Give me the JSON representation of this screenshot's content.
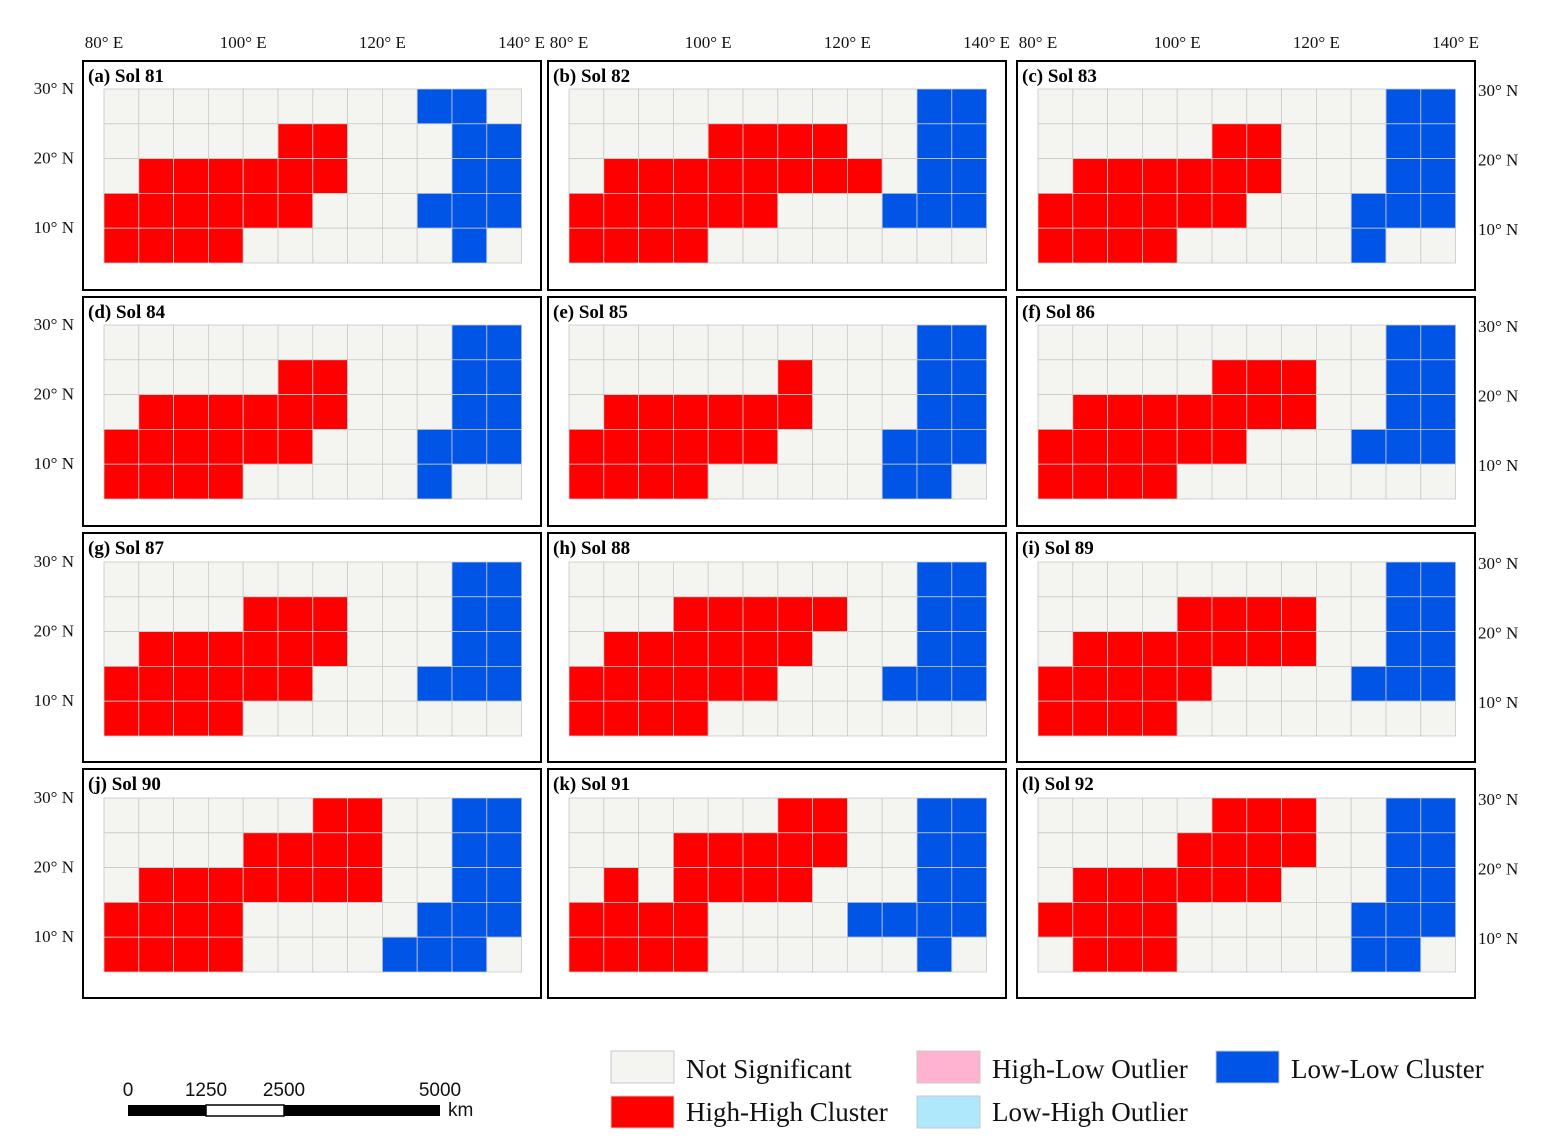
{
  "chart_data": {
    "type": "heatmap",
    "grid": {
      "columns": 12,
      "rows": 5,
      "lon_start": 80,
      "lon_step": 5,
      "lat_top": 30,
      "lat_step": 5,
      "row_order": "north-to-south",
      "legend_codes": {
        "N": "Not Significant",
        "H": "High-High Cluster",
        "L": "Low-Low Cluster",
        "P": "High-Low Outlier",
        "B": "Low-High Outlier"
      }
    },
    "x_ticks": [
      "80° E",
      "100° E",
      "120° E",
      "140° E"
    ],
    "y_ticks": [
      "30° N",
      "20° N",
      "10° N"
    ],
    "panels": [
      {
        "label": "(a) Sol 81",
        "grid": [
          "NNNNNNNNNLLN",
          "NNNNNHHNNNLL",
          "NHHHHHHNNNLL",
          "HHHHHHNNNLLL",
          "HHHHNNNNNNLN"
        ]
      },
      {
        "label": "(b) Sol 82",
        "grid": [
          "NNNNNNNNNNLL",
          "NNNNHHHHNNLL",
          "NHHHHHHHHNLL",
          "HHHHHHNNNLLL",
          "HHHHNNNNNNNN"
        ]
      },
      {
        "label": "(c) Sol 83",
        "grid": [
          "NNNNNNNNNNLL",
          "NNNNNHHNNNLL",
          "NHHHHHHNNNLL",
          "HHHHHHNNNLLL",
          "HHHHNNNNNLNN"
        ]
      },
      {
        "label": "(d) Sol 84",
        "grid": [
          "NNNNNNNNNNLL",
          "NNNNNHHNNNLL",
          "NHHHHHHNNNLL",
          "HHHHHHNNNLLL",
          "HHHHNNNNNLNN"
        ]
      },
      {
        "label": "(e) Sol 85",
        "grid": [
          "NNNNNNNNNNLL",
          "NNNNNNHNNNLL",
          "NHHHHHHNNNLL",
          "HHHHHHNNNLLL",
          "HHHHNNNNNLLN"
        ]
      },
      {
        "label": "(f) Sol 86",
        "grid": [
          "NNNNNNNNNNLL",
          "NNNNNHHHNNLL",
          "NHHHHHHHNNLL",
          "HHHHHHNNNLLL",
          "HHHHNNNNNNNN"
        ]
      },
      {
        "label": "(g) Sol 87",
        "grid": [
          "NNNNNNNNNNLL",
          "NNNNHHHNNNLL",
          "NHHHHHHNNNLL",
          "HHHHHHNNNLLL",
          "HHHHNNNNNNNN"
        ]
      },
      {
        "label": "(h) Sol 88",
        "grid": [
          "NNNNNNNNNNLL",
          "NNNHHHHHNNLL",
          "NHHHHHHNNNLL",
          "HHHHHHNNNLLL",
          "HHHHNNNNNNNN"
        ]
      },
      {
        "label": "(i) Sol 89",
        "grid": [
          "NNNNNNNNNNLL",
          "NNNNHHHHNNLL",
          "NHHHHHHHNNLL",
          "HHHHHNNNNLLL",
          "HHHHNNNNNNNN"
        ]
      },
      {
        "label": "(j) Sol 90",
        "grid": [
          "NNNNNNHHNNLL",
          "NNNNHHHHNNLL",
          "NHHHHHHHNNLL",
          "HHHHNNNNNLLL",
          "HHHHNNNNLLLN"
        ]
      },
      {
        "label": "(k) Sol 91",
        "grid": [
          "NNNNNNHHNNLL",
          "NNNHHHHHNNLL",
          "NHNHHHHNNNLL",
          "HHHHNNNNLLLL",
          "HHHHNNNNNNLN"
        ]
      },
      {
        "label": "(l) Sol 92",
        "grid": [
          "NNNNNHHHNNLL",
          "NNNNHHHHNNLL",
          "NHHHHHHNNNLL",
          "HHHHNNNNNLLL",
          "NHHHNNNNNLLN"
        ]
      }
    ]
  },
  "legend": [
    {
      "code": "N",
      "label": "Not Significant",
      "color": "#f4f4f0"
    },
    {
      "code": "H",
      "label": "High-High Cluster",
      "color": "#ff0000"
    },
    {
      "code": "P",
      "label": "High-Low Outlier",
      "color": "#ffb3d1"
    },
    {
      "code": "B",
      "label": "Low-High Outlier",
      "color": "#b0e8fb"
    },
    {
      "code": "L",
      "label": "Low-Low Cluster",
      "color": "#0055e6"
    }
  ],
  "scale_bar": {
    "ticks": [
      "0",
      "1250",
      "2500",
      "5000"
    ],
    "values": [
      0,
      1250,
      2500,
      5000
    ],
    "unit": "km"
  },
  "colors": {
    "grid_line": "#c8c8c8",
    "frame": "#000000"
  }
}
